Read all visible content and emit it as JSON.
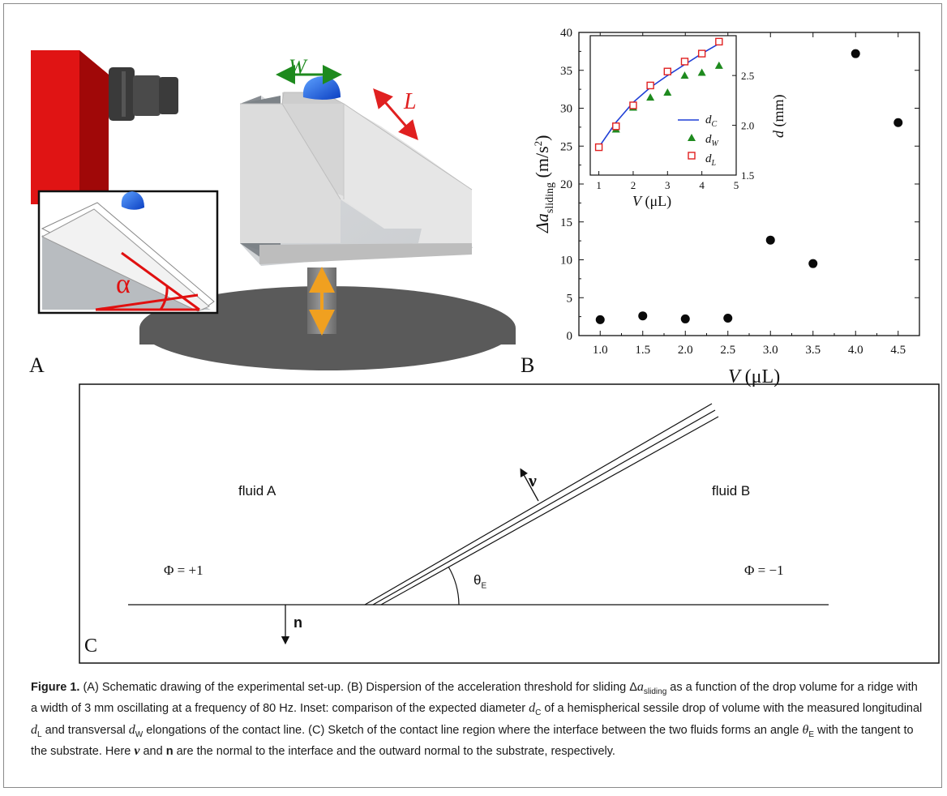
{
  "panel_labels": {
    "a": "A",
    "b": "B",
    "c": "C"
  },
  "panel_a": {
    "width_symbol": "W",
    "length_symbol": "L",
    "angle_symbol": "α",
    "colors": {
      "camera": "#e01010",
      "drop": "#1f63e6",
      "width_arrow": "#1e8a1e",
      "length_arrow": "#e02020",
      "shaker_arrow": "#f0a020",
      "angle": "#e01010"
    }
  },
  "panel_b": {
    "ylabel_prefix": "Δa",
    "ylabel_sub": "sliding",
    "ylabel_units": "(m/s",
    "ylabel_exp": "2",
    "ylabel_close": ")",
    "xlabel": "V (μL)",
    "x_ticks": [
      "1.0",
      "1.5",
      "2.0",
      "2.5",
      "3.0",
      "3.5",
      "4.0",
      "4.5"
    ],
    "y_ticks": [
      "0",
      "5",
      "10",
      "15",
      "20",
      "25",
      "30",
      "35",
      "40"
    ],
    "inset": {
      "xlabel": "V (μL)",
      "ylabel": "d (mm)",
      "x_ticks": [
        "1",
        "2",
        "3",
        "4",
        "5"
      ],
      "y_ticks": [
        "1.5",
        "2.0",
        "2.5"
      ],
      "legend": {
        "dc": "d",
        "dc_sub": "C",
        "dw": "d",
        "dw_sub": "W",
        "dl": "d",
        "dl_sub": "L"
      }
    }
  },
  "panel_c": {
    "fluid_a": "fluid A",
    "fluid_b": "fluid B",
    "phi_left": "Φ = +1",
    "phi_right": "Φ = −1",
    "nu": "ν",
    "n": "n",
    "theta": "θ",
    "theta_sub": "E"
  },
  "chart_data": [
    {
      "type": "scatter",
      "xlabel": "V (μL)",
      "ylabel": "Δa_sliding (m/s^2)",
      "xlim": [
        0.75,
        4.75
      ],
      "ylim": [
        0,
        40
      ],
      "series": [
        {
          "x": [
            1.0,
            1.5,
            2.0,
            2.5,
            3.0,
            3.5,
            4.0,
            4.5
          ],
          "y": [
            2.1,
            2.6,
            2.2,
            2.3,
            12.6,
            9.5,
            37.2,
            28.1
          ]
        }
      ]
    },
    {
      "type": "line",
      "xlabel": "V (μL)",
      "ylabel": "d (mm)",
      "xlim": [
        0.75,
        5
      ],
      "ylim": [
        1.5,
        2.9
      ],
      "series": [
        {
          "name": "d_C",
          "x": [
            1.0,
            1.5,
            2.0,
            2.5,
            3.0,
            3.5,
            4.0,
            4.5
          ],
          "y": [
            1.78,
            2.03,
            2.23,
            2.38,
            2.5,
            2.61,
            2.72,
            2.82
          ],
          "color": "#1f3fd6"
        },
        {
          "name": "d_W",
          "x": [
            1.5,
            2.0,
            2.5,
            3.0,
            3.5,
            4.0,
            4.5
          ],
          "y": [
            1.96,
            2.18,
            2.28,
            2.33,
            2.5,
            2.53,
            2.6
          ],
          "color": "#1e8a1e"
        },
        {
          "name": "d_L",
          "x": [
            1.0,
            1.5,
            2.0,
            2.5,
            3.0,
            3.5,
            4.0,
            4.5
          ],
          "y": [
            1.78,
            1.99,
            2.2,
            2.4,
            2.54,
            2.64,
            2.72,
            2.84
          ],
          "color": "#e02020"
        }
      ]
    }
  ],
  "caption": {
    "fig_label": "Figure 1.",
    "t1": " (A) Schematic drawing of the experimental set-up. (B) Dispersion of the acceleration threshold for sliding Δ",
    "a_sym": "a",
    "a_sub": "sliding",
    "t2": " as a function of the drop volume for a ridge with a width of 3  mm oscillating at a frequency of 80 Hz. Inset: comparison of the expected diameter ",
    "dc_sym": "d",
    "dc_sub": "C",
    "t3": " of a hemispherical sessile drop of volume with the measured longitudinal ",
    "dl_sym": "d",
    "dl_sub": "L",
    "t4": " and transversal ",
    "dw_sym": "d",
    "dw_sub": "W",
    "t5": " elongations of the contact line. (C) Sketch of the contact line region where the interface between the two fluids forms an angle ",
    "th_sym": "θ",
    "th_sub": "E",
    "t6": " with the tangent to the substrate. Here ",
    "nu_sym": "ν",
    "t7": " and ",
    "n_sym": "n",
    "t8": " are the normal to the interface and the outward normal to the substrate, respectively."
  }
}
